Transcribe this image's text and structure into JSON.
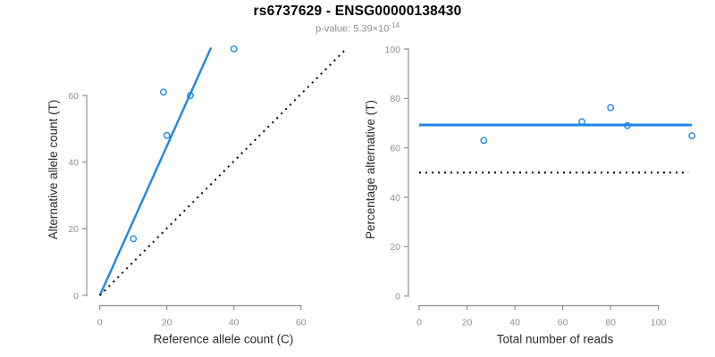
{
  "figure": {
    "title": "rs6737629 - ENSG00000138430",
    "subtitle": {
      "prefix": "p-value: 5.39×10",
      "exponent": "-14"
    }
  },
  "colors": {
    "accent_blue": "#1e87e5",
    "axis_gray": "#909090",
    "tick_label_gray": "#909090",
    "axis_title": "#2b2b2b",
    "title": "#000000",
    "subtitle": "#8f8f8f",
    "dotted_line": "#000000",
    "background": "#ffffff"
  },
  "chart_data": [
    {
      "type": "scatter",
      "panel": "left",
      "xlabel": "Reference allele count (C)",
      "ylabel": "Alternative allele count (T)",
      "xticks": [
        0,
        20,
        40,
        60
      ],
      "yticks": [
        0,
        20,
        40,
        60
      ],
      "xlim": [
        0,
        74
      ],
      "ylim": [
        0,
        76
      ],
      "grid": false,
      "points": [
        [
          10,
          17
        ],
        [
          19,
          61
        ],
        [
          20,
          48
        ],
        [
          27,
          60
        ],
        [
          40,
          74
        ]
      ],
      "lines": [
        {
          "name": "fit-line",
          "role": "allelic-ratio-fit",
          "style": "solid",
          "color": "blue",
          "x1": 0,
          "y1": 0,
          "x2": 33.2,
          "y2": 74.4
        },
        {
          "name": "identity-line",
          "role": "y-equals-x-expectation",
          "style": "dotted",
          "color": "black",
          "x1": 0,
          "y1": 0,
          "x2": 73.5,
          "y2": 74
        }
      ]
    },
    {
      "type": "scatter",
      "panel": "right",
      "xlabel": "Total number of reads",
      "ylabel": "Percentage alternative (T)",
      "xticks": [
        0,
        20,
        40,
        60,
        80,
        100
      ],
      "yticks": [
        0,
        20,
        40,
        60,
        80,
        100
      ],
      "xlim": [
        0,
        115
      ],
      "ylim": [
        0,
        100
      ],
      "grid": false,
      "points": [
        [
          27,
          63
        ],
        [
          68,
          70.6
        ],
        [
          80,
          76.3
        ],
        [
          87,
          69
        ],
        [
          114,
          64.9
        ]
      ],
      "lines": [
        {
          "name": "mean-percentage-line",
          "role": "mean-alternative-percentage",
          "style": "solid",
          "color": "blue",
          "x1": 0,
          "y1": 69.3,
          "x2": 114,
          "y2": 69.3
        },
        {
          "name": "null-line",
          "role": "fifty-percent-expectation",
          "style": "dotted",
          "color": "black",
          "x1": 0,
          "y1": 50,
          "x2": 112.5,
          "y2": 50
        }
      ]
    }
  ]
}
